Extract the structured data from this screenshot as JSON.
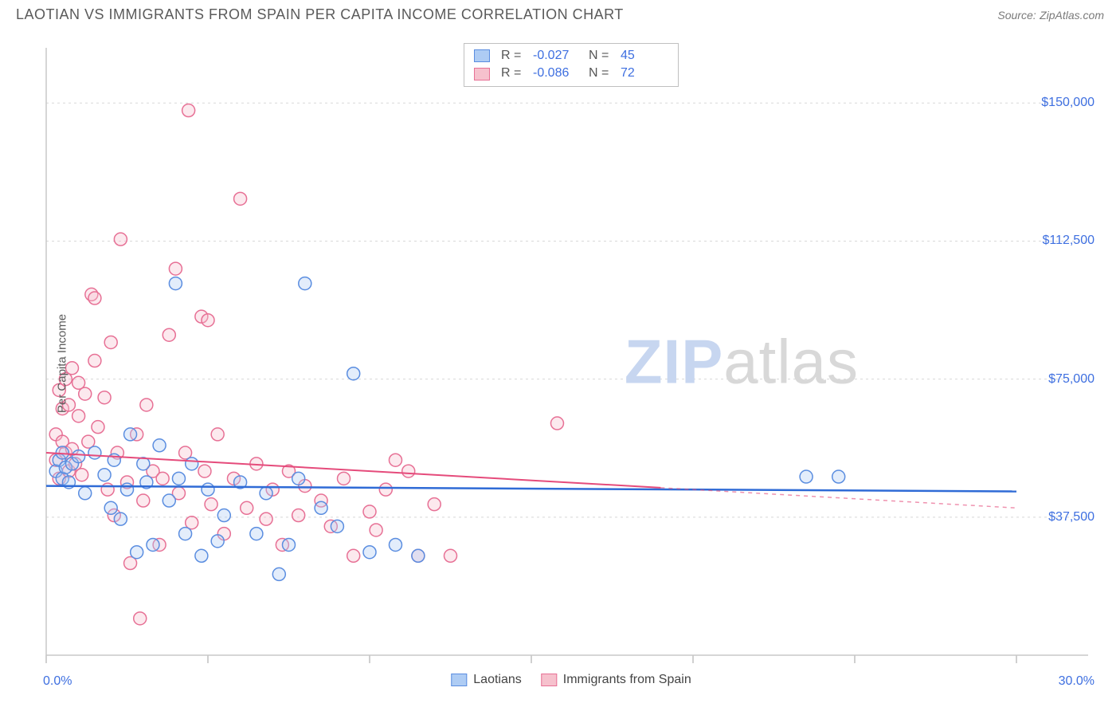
{
  "header": {
    "title": "LAOTIAN VS IMMIGRANTS FROM SPAIN PER CAPITA INCOME CORRELATION CHART",
    "source_label": "Source:",
    "source_name": "ZipAtlas.com"
  },
  "chart": {
    "type": "scatter",
    "ylabel": "Per Capita Income",
    "watermark_a": "ZIP",
    "watermark_b": "atlas",
    "background_color": "#ffffff",
    "grid_color": "#d8d8d8",
    "axis_color": "#c8c8c8",
    "tick_color": "#c0c0c0",
    "label_color": "#3e6fe0",
    "xlim": [
      0,
      30
    ],
    "ylim": [
      0,
      165000
    ],
    "xticks": [
      0,
      5,
      10,
      15,
      20,
      25,
      30
    ],
    "xtick_labels_shown": {
      "0": "0.0%",
      "30": "30.0%"
    },
    "yticks": [
      37500,
      75000,
      112500,
      150000
    ],
    "ytick_labels": {
      "37500": "$37,500",
      "75000": "$75,000",
      "112500": "$112,500",
      "150000": "$150,000"
    },
    "marker_radius": 8,
    "marker_stroke_width": 1.5,
    "fill_opacity": 0.35,
    "series": [
      {
        "key": "laotians",
        "label": "Laotians",
        "color_fill": "#aeccf4",
        "color_stroke": "#5a8de0",
        "stats": {
          "R": "-0.027",
          "N": "45"
        },
        "trend": {
          "y_at_xmin": 46000,
          "y_at_xmax": 44500,
          "solid_until_x": 30,
          "line_color": "#2f6bd6",
          "line_width": 2.5
        },
        "points": [
          [
            0.3,
            50000
          ],
          [
            0.4,
            53000
          ],
          [
            0.5,
            48000
          ],
          [
            0.5,
            55000
          ],
          [
            0.6,
            51000
          ],
          [
            0.7,
            47000
          ],
          [
            0.8,
            52000
          ],
          [
            1.0,
            54000
          ],
          [
            1.2,
            44000
          ],
          [
            1.5,
            55000
          ],
          [
            1.8,
            49000
          ],
          [
            2.0,
            40000
          ],
          [
            2.1,
            53000
          ],
          [
            2.3,
            37000
          ],
          [
            2.5,
            45000
          ],
          [
            2.6,
            60000
          ],
          [
            2.8,
            28000
          ],
          [
            3.0,
            52000
          ],
          [
            3.1,
            47000
          ],
          [
            3.3,
            30000
          ],
          [
            3.5,
            57000
          ],
          [
            3.8,
            42000
          ],
          [
            4.0,
            101000
          ],
          [
            4.1,
            48000
          ],
          [
            4.3,
            33000
          ],
          [
            4.5,
            52000
          ],
          [
            4.8,
            27000
          ],
          [
            5.0,
            45000
          ],
          [
            5.3,
            31000
          ],
          [
            5.5,
            38000
          ],
          [
            6.0,
            47000
          ],
          [
            6.5,
            33000
          ],
          [
            6.8,
            44000
          ],
          [
            7.2,
            22000
          ],
          [
            7.5,
            30000
          ],
          [
            7.8,
            48000
          ],
          [
            8.0,
            101000
          ],
          [
            8.5,
            40000
          ],
          [
            9.0,
            35000
          ],
          [
            9.5,
            76500
          ],
          [
            10.0,
            28000
          ],
          [
            10.8,
            30000
          ],
          [
            11.5,
            27000
          ],
          [
            23.5,
            48500
          ],
          [
            24.5,
            48500
          ]
        ]
      },
      {
        "key": "spain",
        "label": "Immigrants from Spain",
        "color_fill": "#f6c1cd",
        "color_stroke": "#e77095",
        "stats": {
          "R": "-0.086",
          "N": "72"
        },
        "trend": {
          "y_at_xmin": 55000,
          "y_at_xmax": 40000,
          "solid_until_x": 19,
          "line_color": "#e54b7b",
          "line_width": 2
        },
        "points": [
          [
            0.3,
            53000
          ],
          [
            0.3,
            60000
          ],
          [
            0.4,
            48000
          ],
          [
            0.4,
            72000
          ],
          [
            0.5,
            58000
          ],
          [
            0.5,
            67000
          ],
          [
            0.6,
            55000
          ],
          [
            0.6,
            75000
          ],
          [
            0.7,
            50000
          ],
          [
            0.7,
            68000
          ],
          [
            0.8,
            56000
          ],
          [
            0.8,
            78000
          ],
          [
            0.9,
            52000
          ],
          [
            1.0,
            65000
          ],
          [
            1.0,
            74000
          ],
          [
            1.1,
            49000
          ],
          [
            1.2,
            71000
          ],
          [
            1.3,
            58000
          ],
          [
            1.4,
            98000
          ],
          [
            1.5,
            80000
          ],
          [
            1.5,
            97000
          ],
          [
            1.6,
            62000
          ],
          [
            1.8,
            70000
          ],
          [
            1.9,
            45000
          ],
          [
            2.0,
            85000
          ],
          [
            2.1,
            38000
          ],
          [
            2.2,
            55000
          ],
          [
            2.3,
            113000
          ],
          [
            2.5,
            47000
          ],
          [
            2.6,
            25000
          ],
          [
            2.8,
            60000
          ],
          [
            2.9,
            10000
          ],
          [
            3.0,
            42000
          ],
          [
            3.1,
            68000
          ],
          [
            3.3,
            50000
          ],
          [
            3.5,
            30000
          ],
          [
            3.6,
            48000
          ],
          [
            3.8,
            87000
          ],
          [
            4.0,
            105000
          ],
          [
            4.1,
            44000
          ],
          [
            4.3,
            55000
          ],
          [
            4.4,
            148000
          ],
          [
            4.5,
            36000
          ],
          [
            4.8,
            92000
          ],
          [
            4.9,
            50000
          ],
          [
            5.0,
            91000
          ],
          [
            5.1,
            41000
          ],
          [
            5.3,
            60000
          ],
          [
            5.5,
            33000
          ],
          [
            5.8,
            48000
          ],
          [
            6.0,
            124000
          ],
          [
            6.2,
            40000
          ],
          [
            6.5,
            52000
          ],
          [
            6.8,
            37000
          ],
          [
            7.0,
            45000
          ],
          [
            7.3,
            30000
          ],
          [
            7.5,
            50000
          ],
          [
            7.8,
            38000
          ],
          [
            8.0,
            46000
          ],
          [
            8.5,
            42000
          ],
          [
            8.8,
            35000
          ],
          [
            9.2,
            48000
          ],
          [
            9.5,
            27000
          ],
          [
            10.0,
            39000
          ],
          [
            10.2,
            34000
          ],
          [
            10.5,
            45000
          ],
          [
            10.8,
            53000
          ],
          [
            11.2,
            50000
          ],
          [
            11.5,
            27000
          ],
          [
            12.0,
            41000
          ],
          [
            12.5,
            27000
          ],
          [
            15.8,
            63000
          ]
        ]
      }
    ],
    "legend_bottom": [
      {
        "label": "Laotians",
        "fill": "#aeccf4",
        "stroke": "#5a8de0"
      },
      {
        "label": "Immigrants from Spain",
        "fill": "#f6c1cd",
        "stroke": "#e77095"
      }
    ],
    "stats_legend_r_label": "R =",
    "stats_legend_n_label": "N ="
  }
}
